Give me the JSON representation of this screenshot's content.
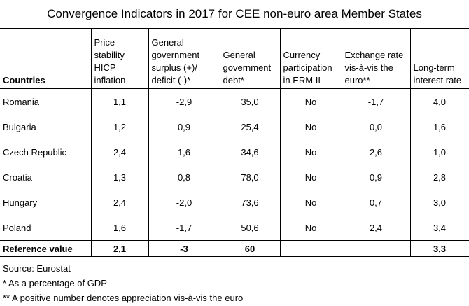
{
  "title": "Convergence Indicators in 2017 for CEE non-euro area Member States",
  "headers": [
    "Countries",
    "Price stability HICP inflation",
    "General government surplus (+)/ deficit (-)*",
    "General government debt*",
    "Currency participation in ERM II",
    "Exchange rate vis-à-vis the euro**",
    "Long-term interest rate"
  ],
  "rows": [
    {
      "country": "Romania",
      "inflation": "1,1",
      "surplus": "-2,9",
      "debt": "35,0",
      "erm": "No",
      "fx": "-1,7",
      "rate": "4,0"
    },
    {
      "country": "Bulgaria",
      "inflation": "1,2",
      "surplus": "0,9",
      "debt": "25,4",
      "erm": "No",
      "fx": "0,0",
      "rate": "1,6"
    },
    {
      "country": "Czech Republic",
      "inflation": "2,4",
      "surplus": "1,6",
      "debt": "34,6",
      "erm": "No",
      "fx": "2,6",
      "rate": "1,0"
    },
    {
      "country": "Croatia",
      "inflation": "1,3",
      "surplus": "0,8",
      "debt": "78,0",
      "erm": "No",
      "fx": "0,9",
      "rate": "2,8"
    },
    {
      "country": "Hungary",
      "inflation": "2,4",
      "surplus": "-2,0",
      "debt": "73,6",
      "erm": "No",
      "fx": "0,7",
      "rate": "3,0"
    },
    {
      "country": "Poland",
      "inflation": "1,6",
      "surplus": "-1,7",
      "debt": "50,6",
      "erm": "No",
      "fx": "2,4",
      "rate": "3,4"
    }
  ],
  "reference": {
    "label": "Reference value",
    "inflation": "2,1",
    "surplus": "-3",
    "debt": "60",
    "erm": "",
    "fx": "",
    "rate": "3,3"
  },
  "notes": [
    "Source: Eurostat",
    "* As a percentage of GDP",
    "** A positive number denotes appreciation vis-à-vis the euro"
  ]
}
